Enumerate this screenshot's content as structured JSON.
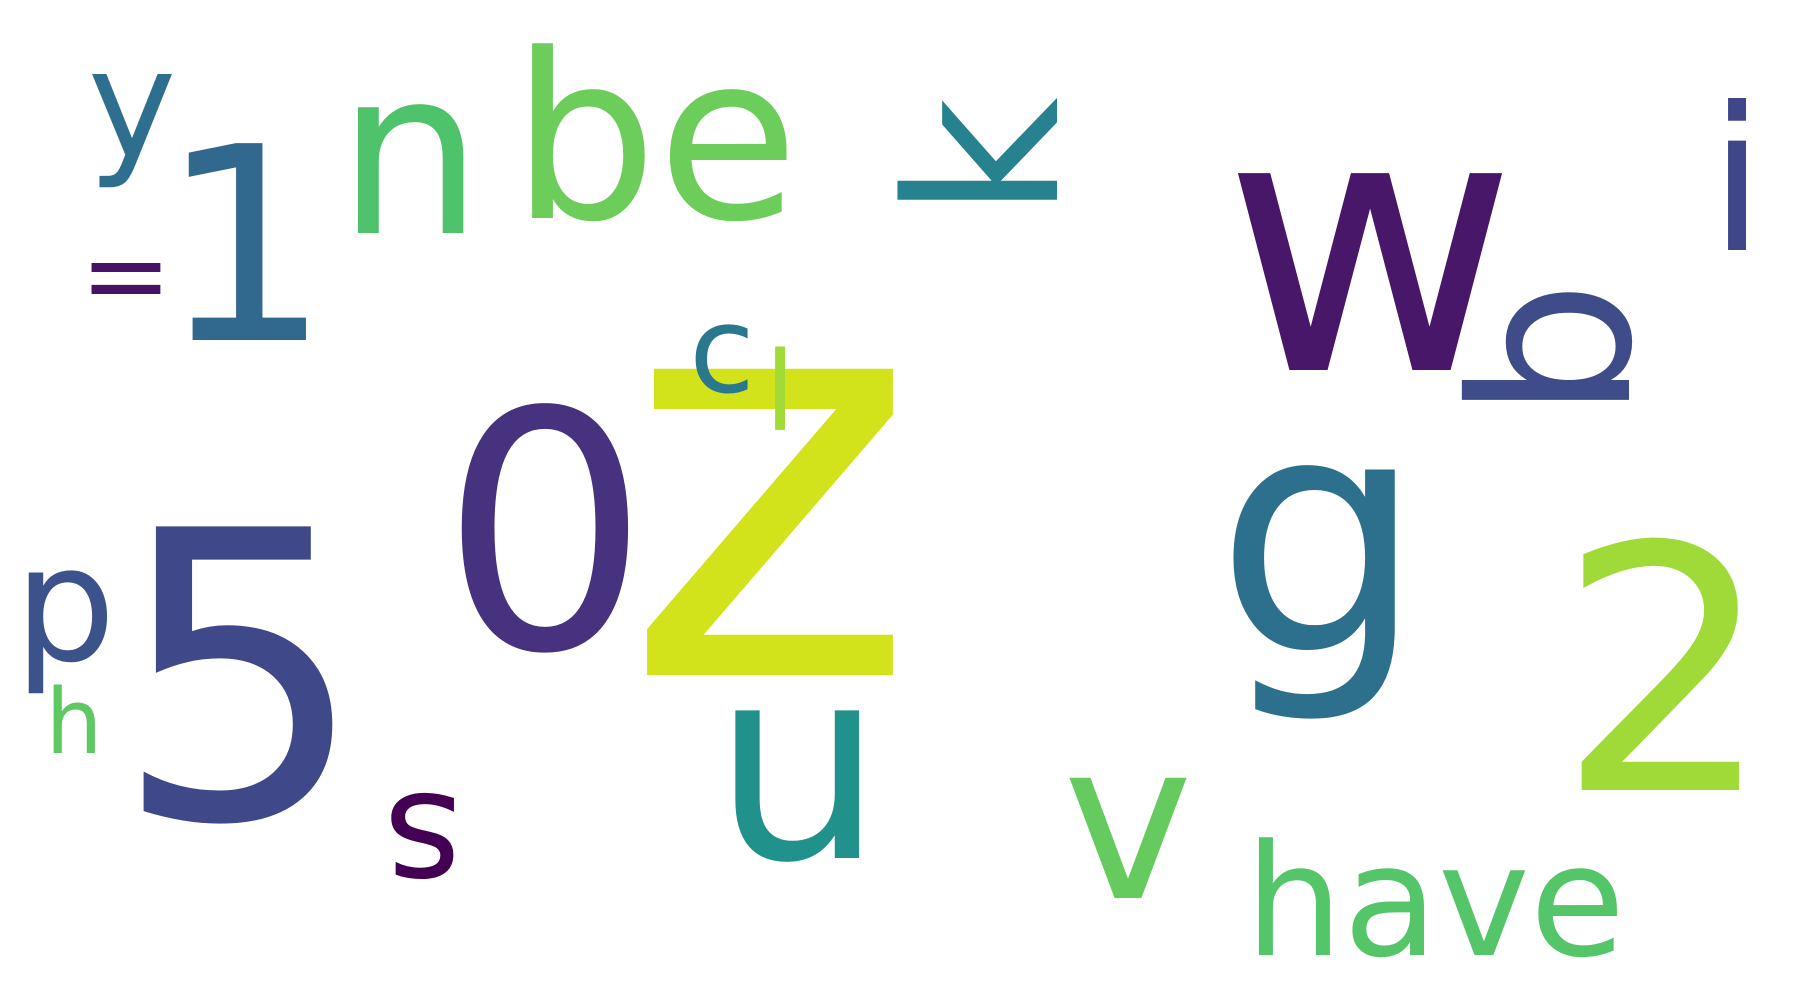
{
  "words": {
    "z": {
      "text": "z",
      "color": "#d2e21b"
    },
    "zero": {
      "text": "0",
      "color": "#46327e"
    },
    "five": {
      "text": "5",
      "color": "#3f4889"
    },
    "w": {
      "text": "w",
      "color": "#481769"
    },
    "g": {
      "text": "g",
      "color": "#2d708e"
    },
    "two": {
      "text": "2",
      "color": "#a0da39"
    },
    "one": {
      "text": "1",
      "color": "#31688e"
    },
    "u": {
      "text": "u",
      "color": "#21918c"
    },
    "be": {
      "text": "be",
      "color": "#6ccd5a"
    },
    "n": {
      "text": "n",
      "color": "#4ec36b"
    },
    "k": {
      "text": "k",
      "color": "#26828e"
    },
    "b": {
      "text": "b",
      "color": "#3e4c8a"
    },
    "v": {
      "text": "v",
      "color": "#65cb5e"
    },
    "have": {
      "text": "have",
      "color": "#54c568"
    },
    "p": {
      "text": "p",
      "color": "#3b528b"
    },
    "y": {
      "text": "y",
      "color": "#2e6e8e"
    },
    "i": {
      "text": "i",
      "color": "#3f4788"
    },
    "s": {
      "text": "s",
      "color": "#440154"
    },
    "c": {
      "text": "c",
      "color": "#2a788e"
    },
    "l": {
      "text": "l",
      "color": "#a2da37"
    },
    "equals": {
      "text": "=",
      "color": "#471365"
    },
    "h": {
      "text": "h",
      "color": "#5ec962"
    }
  }
}
